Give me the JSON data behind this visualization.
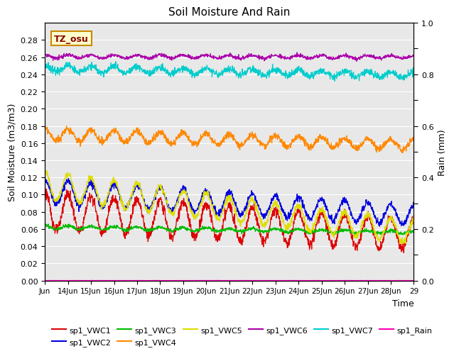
{
  "title": "Soil Moisture And Rain",
  "xlabel": "Time",
  "ylabel_left": "Soil Moisture (m3/m3)",
  "ylabel_right": "Rain (mm)",
  "ylim_left": [
    0.0,
    0.3
  ],
  "ylim_right": [
    0.0,
    1.0
  ],
  "yticks_left": [
    0.0,
    0.02,
    0.04,
    0.06,
    0.08,
    0.1,
    0.12,
    0.14,
    0.16,
    0.18,
    0.2,
    0.22,
    0.24,
    0.26,
    0.28
  ],
  "xtick_labels": [
    "Jun",
    "14Jun",
    "15Jun",
    "16Jun",
    "17Jun",
    "18Jun",
    "19Jun",
    "20Jun",
    "21Jun",
    "22Jun",
    "23Jun",
    "24Jun",
    "25Jun",
    "26Jun",
    "27Jun",
    "28Jun",
    "29"
  ],
  "annotation": "TZ_osu",
  "annotation_bgcolor": "#ffffcc",
  "annotation_edgecolor": "#cc8800",
  "annotation_textcolor": "#880000",
  "background_color": "#e8e8e8",
  "series": [
    {
      "name": "sp1_VWC1",
      "color": "#dd0000",
      "base": 0.081,
      "amplitude": 0.022,
      "trend": -0.028,
      "noise": 0.003,
      "axis": "left"
    },
    {
      "name": "sp1_VWC2",
      "color": "#0000dd",
      "base": 0.104,
      "amplitude": 0.014,
      "trend": -0.028,
      "noise": 0.002,
      "axis": "left"
    },
    {
      "name": "sp1_VWC3",
      "color": "#00bb00",
      "base": 0.062,
      "amplitude": 0.002,
      "trend": -0.006,
      "noise": 0.001,
      "axis": "left"
    },
    {
      "name": "sp1_VWC4",
      "color": "#ff8800",
      "base": 0.17,
      "amplitude": 0.007,
      "trend": -0.012,
      "noise": 0.002,
      "axis": "left"
    },
    {
      "name": "sp1_VWC5",
      "color": "#dddd00",
      "base": 0.111,
      "amplitude": 0.016,
      "trend": -0.055,
      "noise": 0.002,
      "axis": "left"
    },
    {
      "name": "sp1_VWC6",
      "color": "#aa00aa",
      "base": 0.261,
      "amplitude": 0.002,
      "trend": -0.001,
      "noise": 0.001,
      "axis": "left"
    },
    {
      "name": "sp1_VWC7",
      "color": "#00cccc",
      "base": 0.247,
      "amplitude": 0.004,
      "trend": -0.008,
      "noise": 0.002,
      "axis": "left"
    },
    {
      "name": "sp1_Rain",
      "color": "#ff00bb",
      "base": 0.0005,
      "amplitude": 0.0,
      "trend": 0.0,
      "noise": 0.0001,
      "axis": "right"
    }
  ],
  "n_points": 1500
}
